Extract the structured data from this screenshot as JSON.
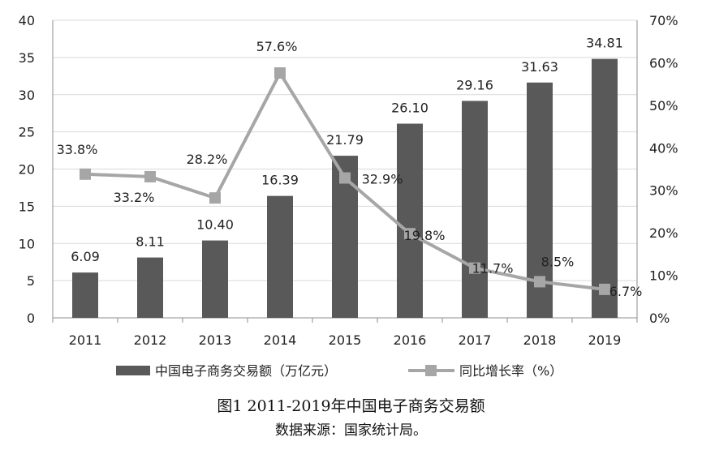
{
  "chart_data": {
    "type": "bar+line",
    "categories": [
      "2011",
      "2012",
      "2013",
      "2014",
      "2015",
      "2016",
      "2017",
      "2018",
      "2019"
    ],
    "series": [
      {
        "name": "中国电子商务交易额（万亿元）",
        "kind": "bar",
        "axis": "left",
        "values": [
          6.09,
          8.11,
          10.4,
          16.39,
          21.79,
          26.1,
          29.16,
          31.63,
          34.81
        ],
        "labels": [
          "6.09",
          "8.11",
          "10.40",
          "16.39",
          "21.79",
          "26.10",
          "29.16",
          "31.63",
          "34.81"
        ],
        "color": "#595959"
      },
      {
        "name": "同比增长率（%）",
        "kind": "line",
        "axis": "right",
        "values": [
          33.8,
          33.2,
          28.2,
          57.6,
          32.9,
          19.8,
          11.7,
          8.5,
          6.7
        ],
        "labels": [
          "33.8%",
          "33.2%",
          "28.2%",
          "57.6%",
          "32.9%",
          "19.8%",
          "11.7%",
          "8.5%",
          "6.7%"
        ],
        "color": "#a6a6a6"
      }
    ],
    "left_axis": {
      "min": 0,
      "max": 40,
      "step": 5,
      "ticks": [
        "0",
        "5",
        "10",
        "15",
        "20",
        "25",
        "30",
        "35",
        "40"
      ]
    },
    "right_axis": {
      "min": 0,
      "max": 70,
      "step": 10,
      "ticks": [
        "0%",
        "10%",
        "20%",
        "30%",
        "40%",
        "50%",
        "60%",
        "70%"
      ]
    },
    "grid": true,
    "legend_position": "bottom"
  },
  "caption": {
    "title": "图1  2011-2019年中国电子商务交易额",
    "source": "数据来源：国家统计局。"
  }
}
